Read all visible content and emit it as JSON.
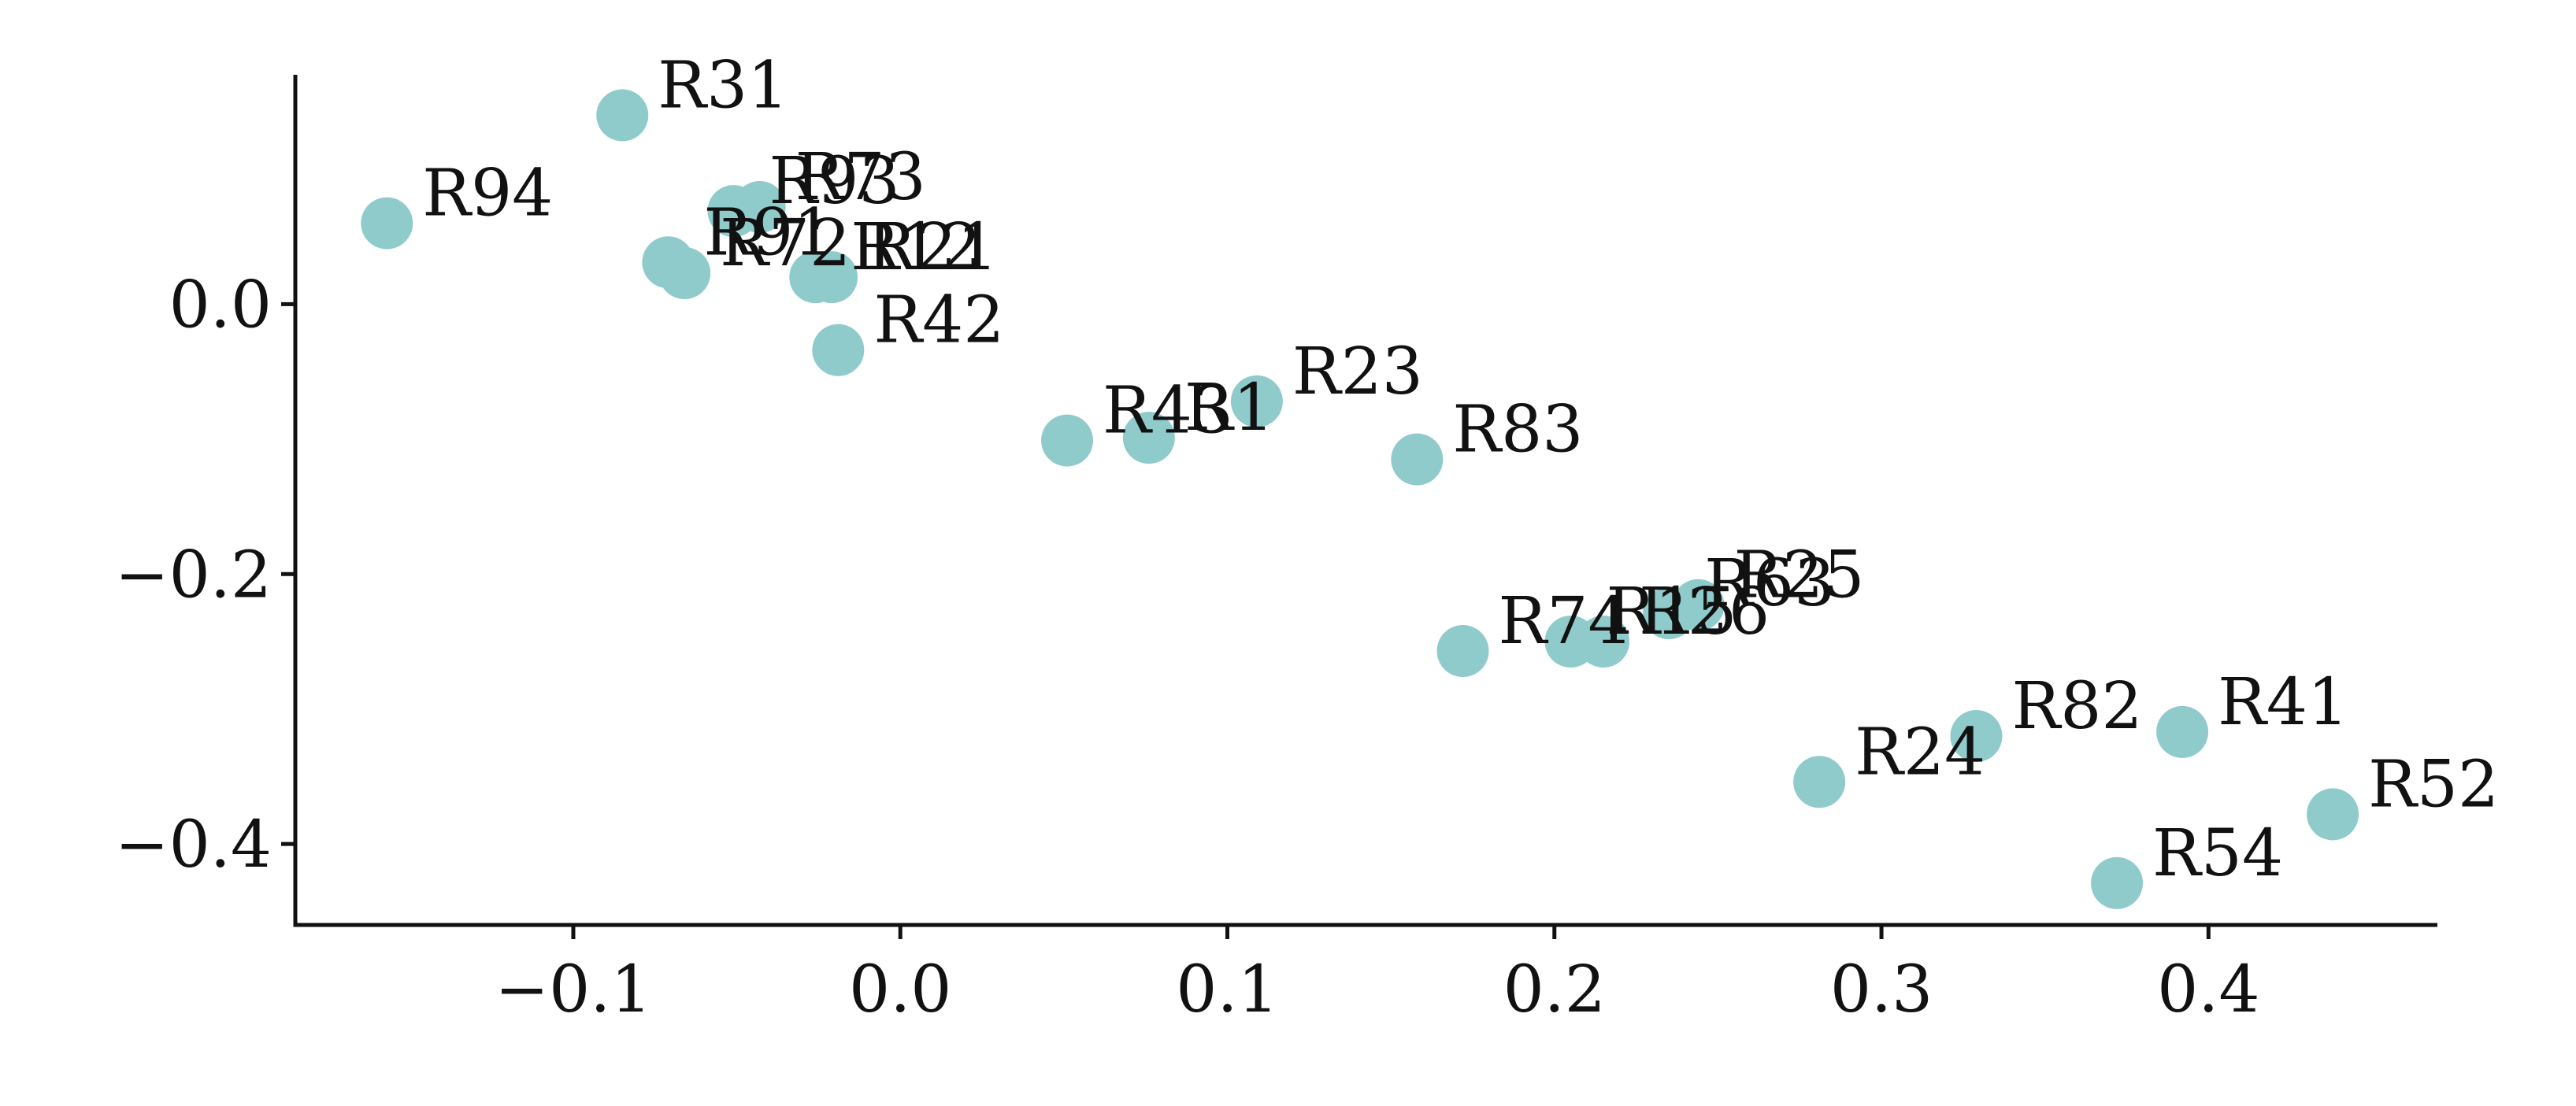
{
  "chart_data": {
    "type": "scatter",
    "title": "",
    "xlabel": "",
    "ylabel": "",
    "xlim": [
      -0.185,
      0.47
    ],
    "ylim": [
      -0.46,
      0.17
    ],
    "x_ticks": [
      -0.1,
      0.0,
      0.1,
      0.2,
      0.3,
      0.4
    ],
    "x_tick_labels": [
      "−0.1",
      "0.0",
      "0.1",
      "0.2",
      "0.3",
      "0.4"
    ],
    "y_ticks": [
      0.0,
      -0.2,
      -0.4
    ],
    "y_tick_labels": [
      "0.0",
      "−0.2",
      "−0.4"
    ],
    "grid": false,
    "marker_color": "#90cbcb",
    "points": [
      {
        "label": "R31",
        "x": -0.085,
        "y": 0.14
      },
      {
        "label": "R94",
        "x": -0.157,
        "y": 0.06
      },
      {
        "label": "R73",
        "x": -0.043,
        "y": 0.072
      },
      {
        "label": "R93",
        "x": -0.051,
        "y": 0.069
      },
      {
        "label": "R91",
        "x": -0.071,
        "y": 0.031
      },
      {
        "label": "R72",
        "x": -0.066,
        "y": 0.023
      },
      {
        "label": "R12",
        "x": -0.026,
        "y": 0.02
      },
      {
        "label": "R21",
        "x": -0.021,
        "y": 0.02
      },
      {
        "label": "R42",
        "x": -0.019,
        "y": -0.034
      },
      {
        "label": "R43",
        "x": 0.051,
        "y": -0.101
      },
      {
        "label": "R1",
        "x": 0.076,
        "y": -0.099
      },
      {
        "label": "R23",
        "x": 0.109,
        "y": -0.072
      },
      {
        "label": "R83",
        "x": 0.158,
        "y": -0.115
      },
      {
        "label": "R74",
        "x": 0.172,
        "y": -0.257
      },
      {
        "label": "R15",
        "x": 0.205,
        "y": -0.25
      },
      {
        "label": "R26",
        "x": 0.215,
        "y": -0.25
      },
      {
        "label": "R63",
        "x": 0.235,
        "y": -0.229
      },
      {
        "label": "R25",
        "x": 0.244,
        "y": -0.223
      },
      {
        "label": "R24",
        "x": 0.281,
        "y": -0.354
      },
      {
        "label": "R82",
        "x": 0.329,
        "y": -0.32
      },
      {
        "label": "R41",
        "x": 0.392,
        "y": -0.317
      },
      {
        "label": "R52",
        "x": 0.438,
        "y": -0.378
      },
      {
        "label": "R54",
        "x": 0.372,
        "y": -0.429
      }
    ]
  }
}
